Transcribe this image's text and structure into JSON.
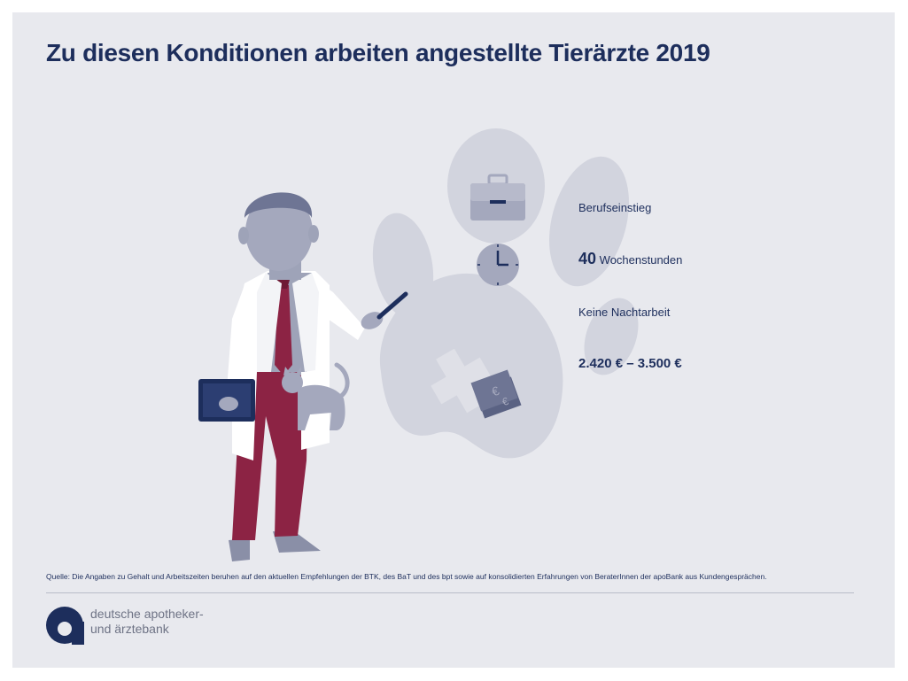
{
  "title": "Zu diesen Konditionen arbeiten angestellte Tierärzte 2019",
  "conditions": {
    "entry": {
      "icon": "briefcase-icon",
      "label": "Berufseinstieg"
    },
    "hours": {
      "icon": "clock-icon",
      "number": "40",
      "label": "Wochenstunden"
    },
    "night": {
      "icon": "moon-icon",
      "label": "Keine Nachtarbeit"
    },
    "salary": {
      "icon": "money-icon",
      "label": "2.420 € – 3.500 €"
    }
  },
  "source": "Quelle: Die Angaben zu Gehalt und Arbeitszeiten beruhen auf den aktuellen Empfehlungen der BTK, des BaT und des bpt sowie auf konsolidierten Erfahrungen von BeraterInnen der apoBank aus Kundengesprächen.",
  "logo": {
    "line1": "deutsche apotheker-",
    "line2": "und ärztebank"
  },
  "colors": {
    "background": "#e8e9ee",
    "navy": "#1d2e5c",
    "grey": "#a4a8bd",
    "paw": "#d2d4de",
    "trousers": "#8c2344"
  }
}
